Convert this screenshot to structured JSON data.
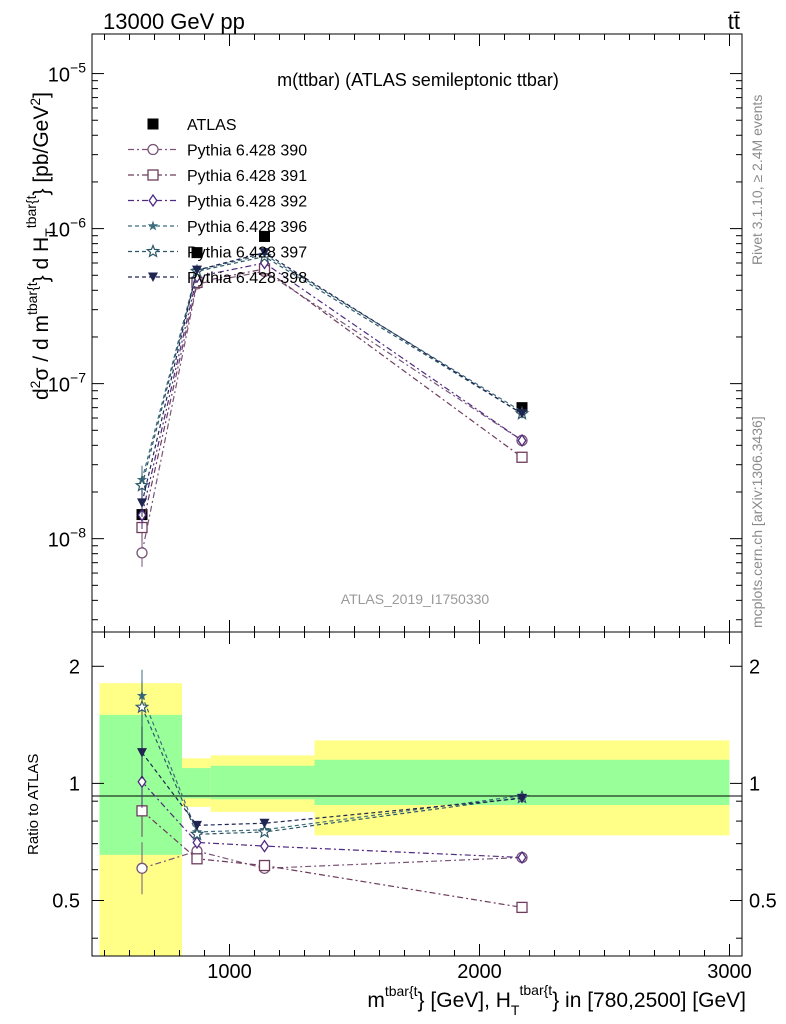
{
  "header": {
    "left": "13000 GeV pp",
    "right": "tt̄"
  },
  "side_labels": {
    "rivet": "Rivet 3.1.10, ≥ 2.4M events",
    "mcplots": "mcplots.cern.ch [arXiv:1306.3436]"
  },
  "colors": {
    "data": "#000000",
    "band_1sigma": "#99ff99",
    "band_2sigma": "#ffff88",
    "p390": "#7a5577",
    "p391": "#6e3d5e",
    "p392": "#4f2a82",
    "p396": "#3e6e7e",
    "p397": "#2e5868",
    "p398": "#1f2450"
  },
  "chart_data": [
    {
      "type": "scatter",
      "title": "m(ttbar) (ATLAS semileptonic ttbar)",
      "watermark": "ATLAS_2019_I1750330",
      "ylabel": "d²σ / d m^{tbar{t}} d H_T^{tbar{t}} [pb/GeV²]",
      "yscale": "log",
      "ylim": [
        2.5e-09,
        1.8e-05
      ],
      "xlim": [
        450,
        3050
      ],
      "y_ticks": [
        {
          "label": "10",
          "exp": "−8",
          "value": 1e-08
        },
        {
          "label": "10",
          "exp": "−7",
          "value": 1e-07
        },
        {
          "label": "10",
          "exp": "−6",
          "value": 1e-06
        },
        {
          "label": "10",
          "exp": "−5",
          "value": 1e-05
        }
      ],
      "x_bins": [
        [
          450,
          800
        ],
        [
          800,
          920
        ],
        [
          920,
          1340
        ],
        [
          1340,
          3000
        ]
      ],
      "x": [
        650,
        870,
        1140,
        2170
      ],
      "series": [
        {
          "name": "ATLAS",
          "color_key": "data",
          "marker": "filled-square",
          "values": [
            1.43e-08,
            7e-07,
            8.9e-07,
            7e-08
          ]
        },
        {
          "name": "Pythia 6.428 390",
          "color_key": "p390",
          "marker": "open-circle",
          "dash": "6,3,2,3",
          "values": [
            8.1e-09,
            4.4e-07,
            5.3e-07,
            4.3e-08
          ]
        },
        {
          "name": "Pythia 6.428 391",
          "color_key": "p391",
          "marker": "open-square",
          "dash": "6,3,2,3",
          "values": [
            1.18e-08,
            4.5e-07,
            5.5e-07,
            3.35e-08
          ]
        },
        {
          "name": "Pythia 6.428 392",
          "color_key": "p392",
          "marker": "open-diamond",
          "dash": "6,3,2,3",
          "values": [
            1.42e-08,
            4.9e-07,
            6e-07,
            4.3e-08
          ]
        },
        {
          "name": "Pythia 6.428 396",
          "color_key": "p396",
          "marker": "filled-star",
          "dash": "4,3",
          "values": [
            2.4e-08,
            5.4e-07,
            6.8e-07,
            6.6e-08
          ]
        },
        {
          "name": "Pythia 6.428 397",
          "color_key": "p397",
          "marker": "open-star",
          "dash": "4,3",
          "values": [
            2.2e-08,
            5.3e-07,
            6.6e-07,
            6.4e-08
          ]
        },
        {
          "name": "Pythia 6.428 398",
          "color_key": "p398",
          "marker": "filled-triangle-down",
          "dash": "4,3",
          "values": [
            1.7e-08,
            5.4e-07,
            7e-07,
            6.4e-08
          ]
        }
      ]
    },
    {
      "type": "scatter",
      "ylabel": "Ratio to ATLAS",
      "xlabel": "m^{tbar{t}} [GeV], H_T^{tbar{t}} in [780,2500] [GeV]",
      "yscale": "log",
      "ylim": [
        0.36,
        2.45
      ],
      "xlim": [
        450,
        3050
      ],
      "y_ticks": [
        {
          "label": "0.5",
          "value": 0.5
        },
        {
          "label": "1",
          "value": 1
        },
        {
          "label": "2",
          "value": 2
        }
      ],
      "x_ticks": [
        {
          "label": "1000",
          "value": 1000
        },
        {
          "label": "2000",
          "value": 2000
        },
        {
          "label": "3000",
          "value": 3000
        }
      ],
      "bands": [
        {
          "x_range": [
            480,
            810
          ],
          "inner": [
            0.655,
            1.5
          ],
          "outer": [
            0.36,
            1.81
          ]
        },
        {
          "x_range": [
            810,
            925
          ],
          "inner": [
            0.915,
            1.095
          ],
          "outer": [
            0.87,
            1.16
          ]
        },
        {
          "x_range": [
            925,
            1340
          ],
          "inner": [
            0.91,
            1.11
          ],
          "outer": [
            0.845,
            1.18
          ]
        },
        {
          "x_range": [
            1340,
            3000
          ],
          "inner": [
            0.88,
            1.15
          ],
          "outer": [
            0.735,
            1.29
          ]
        }
      ],
      "x": [
        650,
        870,
        1140,
        2170
      ],
      "series": [
        {
          "name": "Pythia 6.428 390",
          "color_key": "p390",
          "marker": "open-circle",
          "dash": "6,3,2,3",
          "values": [
            0.605,
            0.67,
            0.605,
            0.645
          ]
        },
        {
          "name": "Pythia 6.428 391",
          "color_key": "p391",
          "marker": "open-square",
          "dash": "6,3,2,3",
          "values": [
            0.85,
            0.64,
            0.615,
            0.48
          ]
        },
        {
          "name": "Pythia 6.428 392",
          "color_key": "p392",
          "marker": "open-diamond",
          "dash": "6,3,2,3",
          "values": [
            1.01,
            0.705,
            0.69,
            0.645
          ]
        },
        {
          "name": "Pythia 6.428 396",
          "color_key": "p396",
          "marker": "filled-star",
          "dash": "4,3",
          "values": [
            1.68,
            0.75,
            0.76,
            0.93
          ]
        },
        {
          "name": "Pythia 6.428 397",
          "color_key": "p397",
          "marker": "open-star",
          "dash": "4,3",
          "values": [
            1.57,
            0.74,
            0.75,
            0.92
          ]
        },
        {
          "name": "Pythia 6.428 398",
          "color_key": "p398",
          "marker": "filled-triangle-down",
          "dash": "4,3",
          "values": [
            1.2,
            0.78,
            0.79,
            0.915
          ]
        }
      ]
    }
  ]
}
